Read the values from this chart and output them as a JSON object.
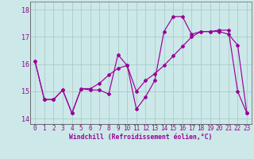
{
  "xlabel": "Windchill (Refroidissement éolien,°C)",
  "background_color": "#cce8e8",
  "line_color": "#990099",
  "grid_color": "#aacccc",
  "x_values": [
    0,
    1,
    2,
    3,
    4,
    5,
    6,
    7,
    8,
    9,
    10,
    11,
    12,
    13,
    14,
    15,
    16,
    17,
    18,
    19,
    20,
    21,
    22,
    23
  ],
  "curve1_y": [
    16.1,
    14.7,
    14.7,
    15.05,
    14.2,
    15.1,
    15.05,
    15.05,
    14.9,
    16.35,
    15.95,
    14.35,
    14.8,
    15.4,
    17.2,
    17.75,
    17.75,
    17.1,
    17.2,
    17.2,
    17.2,
    17.1,
    16.7,
    14.2
  ],
  "curve2_y": [
    16.1,
    14.7,
    14.7,
    15.05,
    14.2,
    15.1,
    15.1,
    15.3,
    15.6,
    15.85,
    15.95,
    15.0,
    15.4,
    15.65,
    15.95,
    16.3,
    16.65,
    17.0,
    17.2,
    17.2,
    17.25,
    17.25,
    15.0,
    14.2
  ],
  "ylim": [
    13.8,
    18.3
  ],
  "yticks": [
    14,
    15,
    16,
    17,
    18
  ],
  "xticks": [
    0,
    1,
    2,
    3,
    4,
    5,
    6,
    7,
    8,
    9,
    10,
    11,
    12,
    13,
    14,
    15,
    16,
    17,
    18,
    19,
    20,
    21,
    22,
    23
  ],
  "tick_fontsize": 5.5,
  "xlabel_fontsize": 5.8
}
